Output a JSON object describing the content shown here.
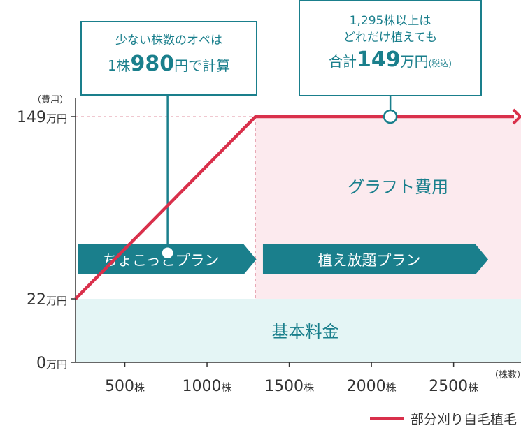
{
  "chart_data": {
    "type": "line",
    "x_tick_values": [
      500,
      1000,
      1500,
      2000,
      2500
    ],
    "x_tick_labels": [
      "500",
      "1000",
      "1500",
      "2000",
      "2500"
    ],
    "x_tick_unit": "株",
    "x_unit_label": "（株数）",
    "y_tick_values": [
      0,
      22,
      149
    ],
    "y_tick_labels": [
      "0",
      "22",
      "149"
    ],
    "y_tick_unit": "万円",
    "y_unit_label": "（費用）",
    "xlim": [
      200,
      2910
    ],
    "ylim": [
      0,
      149
    ],
    "series": [
      {
        "name": "部分刈り自毛植毛",
        "color": "#d9304b",
        "x": [
          200,
          1295,
          2910
        ],
        "y": [
          22,
          149,
          149
        ]
      }
    ],
    "areas": [
      {
        "label": "基本料金",
        "y_range": [
          0,
          22
        ],
        "color": "#e4f5f5"
      },
      {
        "label": "グラフト費用",
        "y_range": [
          22,
          149
        ],
        "x_from": 1295,
        "color": "#fceaee"
      }
    ],
    "bands": [
      {
        "label": "ちょこっとプラン",
        "x_range": [
          200,
          1300
        ],
        "color": "#1a7f8c"
      },
      {
        "label": "植え放題プラン",
        "x_range": [
          1340,
          2710
        ],
        "color": "#1a7f8c"
      }
    ],
    "grid": false,
    "legend": "bottom-right"
  },
  "callouts": {
    "left": {
      "line1": "少ない株数のオペは",
      "big_pre": "1株",
      "big": "980",
      "big_post": "円で計算",
      "anchor_x": 760,
      "anchor_y": 54
    },
    "right": {
      "line1": "1,295株以上は",
      "line2": "どれだけ植えても",
      "pre": "合計",
      "big": "149",
      "post": "万円",
      "small": "(税込)",
      "anchor_x": 2115,
      "anchor_y": 149
    }
  },
  "legend": {
    "label": "部分刈り自毛植毛"
  },
  "colors": {
    "accent": "#1a7f8c",
    "line": "#d9304b",
    "base_area": "#e4f5f5",
    "graft_area": "#fceaee"
  }
}
